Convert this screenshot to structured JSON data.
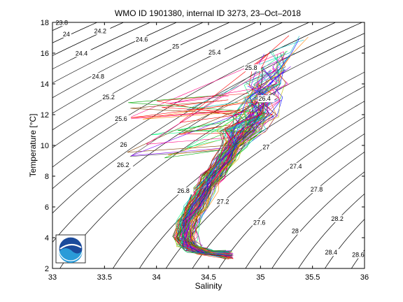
{
  "chart_data": {
    "type": "line",
    "title": "WMO ID 1901380, internal ID 3273, 23–Oct–2018",
    "xlabel": "Salinity",
    "ylabel": "Temperature [°C]",
    "xlim": [
      33,
      36
    ],
    "ylim": [
      2,
      18
    ],
    "x_ticks": [
      "33",
      "33.5",
      "34",
      "34.5",
      "35",
      "35.5",
      "36"
    ],
    "y_ticks": [
      "2",
      "4",
      "6",
      "8",
      "10",
      "12",
      "14",
      "16",
      "18"
    ],
    "grid": false,
    "density_contours": [
      {
        "label": "23.8",
        "value": 23.8,
        "label_at": [
          33.03,
          17.85
        ]
      },
      {
        "label": "24",
        "value": 24.0,
        "label_at": [
          33.1,
          17.1
        ]
      },
      {
        "label": "24.2",
        "value": 24.2,
        "label_at": [
          33.4,
          17.3
        ]
      },
      {
        "label": "24.4",
        "value": 24.4,
        "label_at": [
          33.22,
          15.85
        ]
      },
      {
        "label": "24.6",
        "value": 24.6,
        "label_at": [
          33.8,
          16.75
        ]
      },
      {
        "label": "24.8",
        "value": 24.8,
        "label_at": [
          33.38,
          14.35
        ]
      },
      {
        "label": "25",
        "value": 25.0,
        "label_at": [
          34.15,
          16.3
        ]
      },
      {
        "label": "25.2",
        "value": 25.2,
        "label_at": [
          33.48,
          13.0
        ]
      },
      {
        "label": "25.4",
        "value": 25.4,
        "label_at": [
          34.5,
          15.9
        ]
      },
      {
        "label": "25.6",
        "value": 25.6,
        "label_at": [
          33.6,
          11.6
        ]
      },
      {
        "label": "25.8",
        "value": 25.8,
        "label_at": [
          34.85,
          14.9
        ]
      },
      {
        "label": "26",
        "value": 26.0,
        "label_at": [
          33.65,
          9.9
        ]
      },
      {
        "label": "26.2",
        "value": 26.2,
        "label_at": [
          33.62,
          8.6
        ]
      },
      {
        "label": "26.4",
        "value": 26.4,
        "label_at": [
          34.98,
          12.9
        ]
      },
      {
        "label": "26.8",
        "value": 26.8,
        "label_at": [
          34.2,
          6.9
        ]
      },
      {
        "label": "27",
        "value": 27.0,
        "label_at": [
          35.02,
          9.75
        ]
      },
      {
        "label": "27.2",
        "value": 27.2,
        "label_at": [
          34.58,
          6.2
        ]
      },
      {
        "label": "27.4",
        "value": 27.4,
        "label_at": [
          35.28,
          8.5
        ]
      },
      {
        "label": "27.6",
        "value": 27.6,
        "label_at": [
          34.93,
          4.85
        ]
      },
      {
        "label": "27.8",
        "value": 27.8,
        "label_at": [
          35.48,
          7.0
        ]
      },
      {
        "label": "28",
        "value": 28.0,
        "label_at": [
          35.3,
          4.3
        ]
      },
      {
        "label": "28.2",
        "value": 28.2,
        "label_at": [
          35.68,
          5.1
        ]
      },
      {
        "label": "28.4",
        "value": 28.4,
        "label_at": [
          35.62,
          2.9
        ]
      },
      {
        "label": "28.6",
        "value": 28.6,
        "label_at": [
          35.88,
          2.75
        ]
      }
    ],
    "profiles": {
      "count": 100,
      "envelope": [
        {
          "temperature": 3.0,
          "salinity_center": 34.5
        },
        {
          "temperature": 3.2,
          "salinity_center": 34.4
        },
        {
          "temperature": 3.5,
          "salinity_center": 34.32
        },
        {
          "temperature": 4.0,
          "salinity_center": 34.28
        },
        {
          "temperature": 5.0,
          "salinity_center": 34.3
        },
        {
          "temperature": 6.0,
          "salinity_center": 34.38
        },
        {
          "temperature": 7.0,
          "salinity_center": 34.46
        },
        {
          "temperature": 8.0,
          "salinity_center": 34.55
        },
        {
          "temperature": 9.0,
          "salinity_center": 34.66
        },
        {
          "temperature": 10.0,
          "salinity_center": 34.75
        },
        {
          "temperature": 11.0,
          "salinity_center": 34.83
        },
        {
          "temperature": 12.0,
          "salinity_center": 34.95
        },
        {
          "temperature": 13.0,
          "salinity_center": 35.02
        },
        {
          "temperature": 14.0,
          "salinity_center": 35.08
        },
        {
          "temperature": 15.0,
          "salinity_center": 35.14
        },
        {
          "temperature": 16.0,
          "salinity_center": 35.2
        },
        {
          "temperature": 17.0,
          "salinity_center": 35.26
        }
      ],
      "deep_end": {
        "temperature": 2.6,
        "salinity": 34.7
      }
    },
    "logo": "noaa-logo"
  }
}
